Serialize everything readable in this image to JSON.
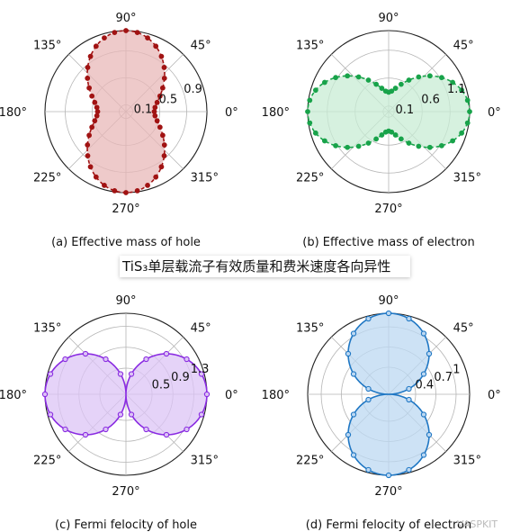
{
  "banner": {
    "text": "TiS₃单层载流子有效质量和费米速度各向异性"
  },
  "watermark": {
    "text": "VASPKIT"
  },
  "angle_labels": [
    "0°",
    "45°",
    "90°",
    "135°",
    "180°",
    "225°",
    "270°",
    "315°"
  ],
  "chart_data": [
    {
      "type": "polar",
      "title": "(a) Effective mass of hole",
      "rmax": 1.2,
      "rticks": [
        0.1,
        0.5,
        0.9
      ],
      "color": "#a11313",
      "fill": "#e8b8b8",
      "marker": "filled-circle",
      "linestyle": "dashed",
      "series": [
        {
          "shape": "vertical-peanut",
          "r_at_0": 0.42,
          "r_at_90": 1.2
        }
      ]
    },
    {
      "type": "polar",
      "title": "(b) Effective mass of electron",
      "rmax": 1.45,
      "rticks": [
        0.1,
        0.6,
        1.1
      ],
      "color": "#18a34a",
      "fill": "#c8ecd4",
      "marker": "filled-circle",
      "linestyle": "dashed",
      "series": [
        {
          "shape": "horizontal-peanut",
          "r_at_0": 1.45,
          "r_at_90": 0.35
        }
      ]
    },
    {
      "type": "polar",
      "title": "(c) Fermi felocity of hole",
      "rmax": 1.55,
      "rticks": [
        0.5,
        0.9,
        1.3
      ],
      "color": "#8a2be2",
      "fill": "#dcc4f5",
      "marker": "open-circle",
      "linestyle": "solid",
      "series": [
        {
          "shape": "horizontal-figure8",
          "r_at_0": 1.55,
          "r_at_90": 0.0
        }
      ]
    },
    {
      "type": "polar",
      "title": "(d) Fermi felocity of electron",
      "rmax": 1.2,
      "rticks": [
        0.4,
        0.7,
        1.0
      ],
      "color": "#1f77c4",
      "fill": "#bcd8f2",
      "marker": "open-circle",
      "linestyle": "solid",
      "series": [
        {
          "shape": "vertical-figure8",
          "r_at_0": 0.0,
          "r_at_90": 1.2
        }
      ]
    }
  ]
}
